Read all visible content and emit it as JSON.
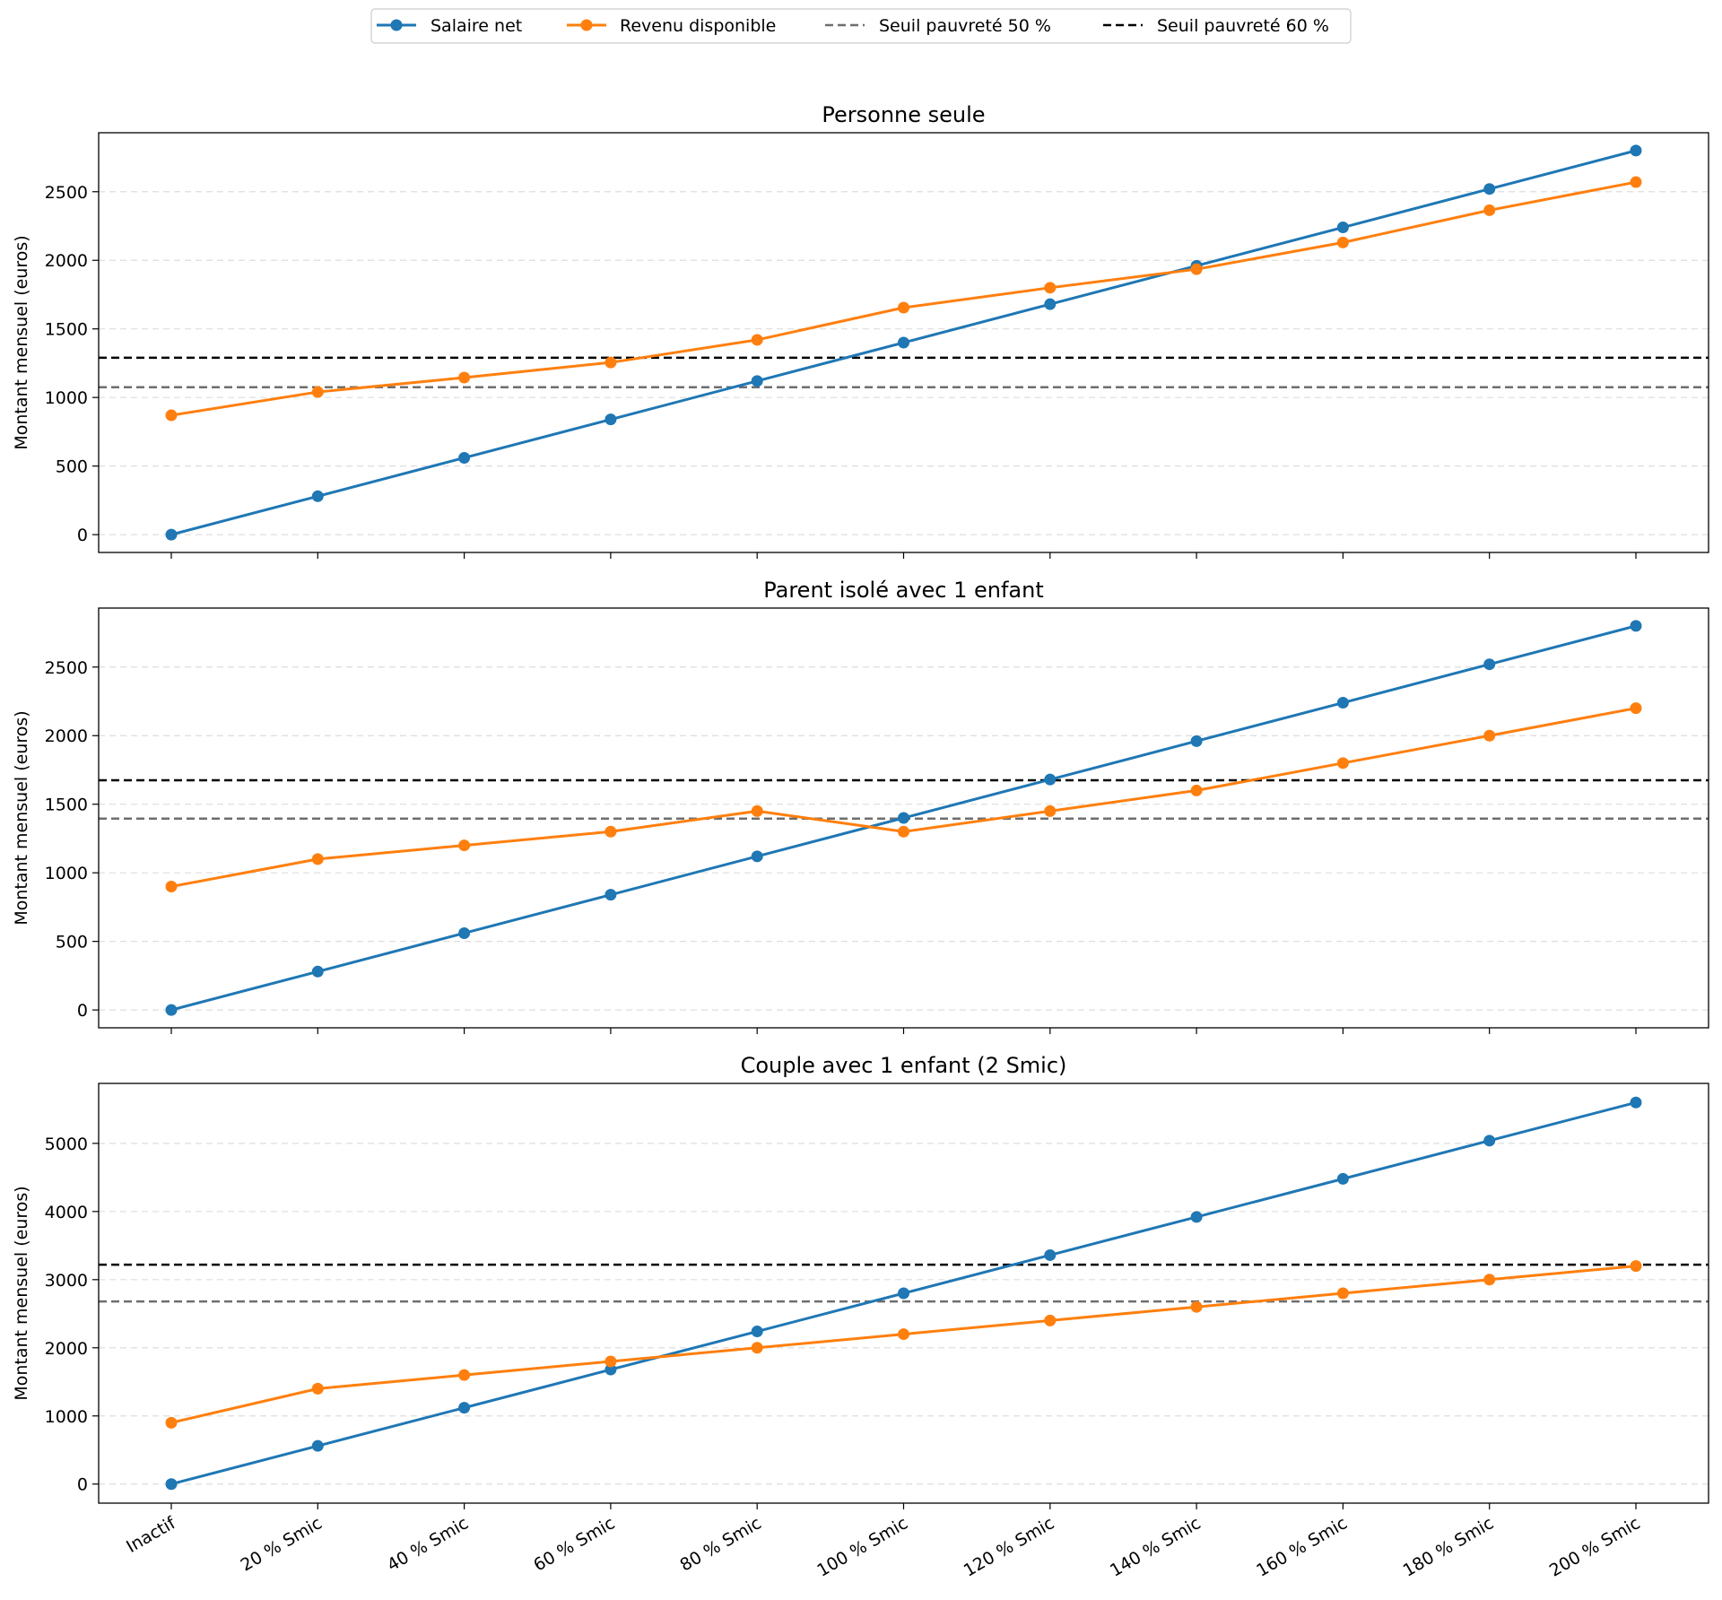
{
  "chart_data": {
    "type": "line",
    "categories": [
      "Inactif",
      "20 % Smic",
      "40 % Smic",
      "60 % Smic",
      "80 % Smic",
      "100 % Smic",
      "120 % Smic",
      "140 % Smic",
      "160 % Smic",
      "180 % Smic",
      "200 % Smic"
    ],
    "legend": {
      "placement": "top-center",
      "entries": [
        "Salaire net",
        "Revenu disponible",
        "Seuil pauvreté 50 %",
        "Seuil pauvreté 60 %"
      ]
    },
    "colors": {
      "salaire": "#1f77b4",
      "revenu": "#ff7f0e",
      "seuil50": "#6e6e6e",
      "seuil60": "#000000",
      "grid": "#dddddd"
    },
    "panels": [
      {
        "title": "Personne seule",
        "ylabel": "Montant mensuel (euros)",
        "ylim": [
          -130,
          2930
        ],
        "yticks": [
          0,
          500,
          1000,
          1500,
          2000,
          2500
        ],
        "series": [
          {
            "name": "Salaire net",
            "values": [
              0,
              280,
              560,
              840,
              1120,
              1400,
              1680,
              1960,
              2240,
              2520,
              2800
            ]
          },
          {
            "name": "Revenu disponible",
            "values": [
              870,
              1040,
              1145,
              1255,
              1420,
              1655,
              1800,
              1935,
              2130,
              2365,
              2570
            ]
          }
        ],
        "thresholds": {
          "seuil50": 1075,
          "seuil60": 1290
        }
      },
      {
        "title": "Parent isolé avec 1 enfant",
        "ylabel": "Montant mensuel (euros)",
        "ylim": [
          -130,
          2930
        ],
        "yticks": [
          0,
          500,
          1000,
          1500,
          2000,
          2500
        ],
        "series": [
          {
            "name": "Salaire net",
            "values": [
              0,
              280,
              560,
              840,
              1120,
              1400,
              1680,
              1960,
              2240,
              2520,
              2800
            ]
          },
          {
            "name": "Revenu disponible",
            "values": [
              900,
              1100,
              1200,
              1300,
              1450,
              1300,
              1450,
              1600,
              1800,
              2000,
              2200
            ]
          }
        ],
        "thresholds": {
          "seuil50": 1395,
          "seuil60": 1675
        }
      },
      {
        "title": "Couple avec 1 enfant (2 Smic)",
        "ylabel": "Montant mensuel (euros)",
        "ylim": [
          -280,
          5880
        ],
        "yticks": [
          0,
          1000,
          2000,
          3000,
          4000,
          5000
        ],
        "series": [
          {
            "name": "Salaire net",
            "values": [
              0,
              560,
              1120,
              1680,
              2240,
              2800,
              3360,
              3920,
              4480,
              5040,
              5600
            ]
          },
          {
            "name": "Revenu disponible",
            "values": [
              900,
              1400,
              1600,
              1800,
              2000,
              2200,
              2400,
              2600,
              2800,
              3000,
              3200
            ]
          }
        ],
        "thresholds": {
          "seuil50": 2680,
          "seuil60": 3220
        }
      }
    ]
  }
}
